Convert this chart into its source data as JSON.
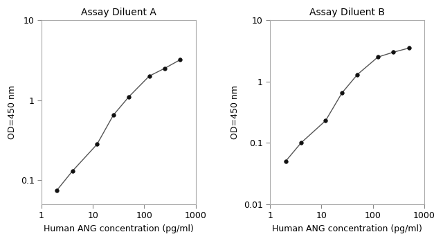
{
  "panel_A": {
    "title": "Assay Diluent A",
    "x": [
      2,
      4,
      12,
      25,
      50,
      125,
      250,
      500
    ],
    "y": [
      0.075,
      0.13,
      0.28,
      0.65,
      1.1,
      2.0,
      2.5,
      3.2
    ],
    "xlim": [
      1,
      1000
    ],
    "ylim": [
      0.05,
      10
    ],
    "yticks": [
      0.1,
      1,
      10
    ],
    "ytick_labels": [
      "0.1",
      "1",
      "10"
    ]
  },
  "panel_B": {
    "title": "Assay Diluent B",
    "x": [
      2,
      4,
      12,
      25,
      50,
      125,
      250,
      500
    ],
    "y": [
      0.05,
      0.1,
      0.23,
      0.65,
      1.3,
      2.5,
      3.0,
      3.5
    ],
    "xlim": [
      1,
      1000
    ],
    "ylim": [
      0.01,
      10
    ],
    "yticks": [
      0.01,
      0.1,
      1,
      10
    ],
    "ytick_labels": [
      "0.01",
      "0.1",
      "1",
      "10"
    ]
  },
  "xlabel": "Human ANG concentration (pg/ml)",
  "ylabel": "OD=450 nm",
  "line_color": "#555555",
  "marker": "o",
  "marker_color": "#111111",
  "marker_size": 4,
  "title_fontsize": 10,
  "label_fontsize": 9,
  "tick_fontsize": 9,
  "bg_color": "#ffffff"
}
